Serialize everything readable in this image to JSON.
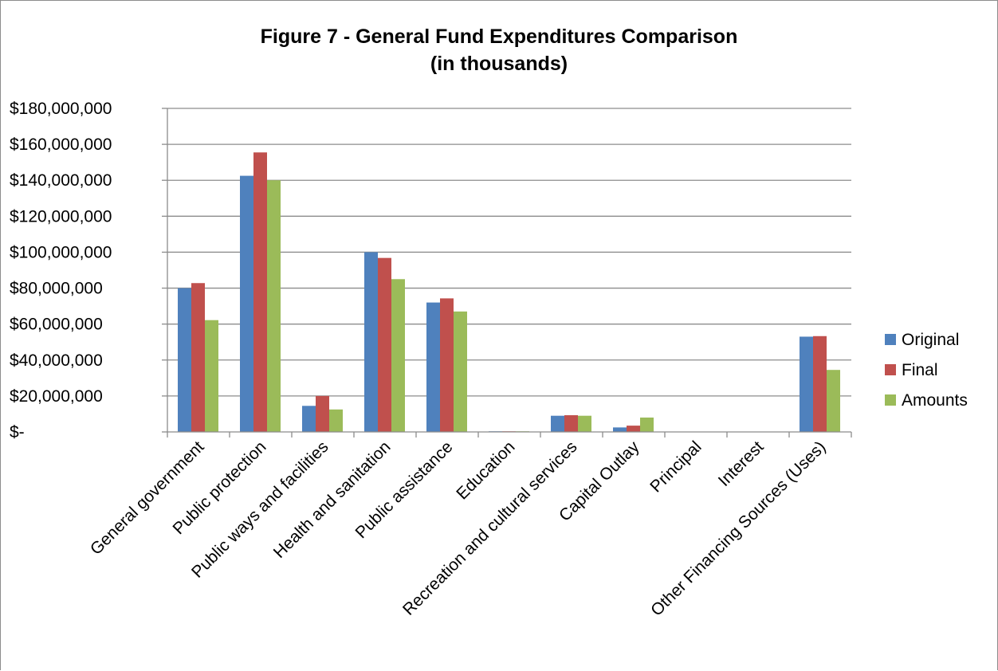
{
  "chart_data": {
    "type": "bar",
    "title": "Figure 7 - General Fund Expenditures Comparison",
    "subtitle": "(in thousands)",
    "xlabel": "",
    "ylabel": "",
    "ylim": [
      0,
      180000000
    ],
    "y_ticks": [
      {
        "value": 0,
        "label": "$-"
      },
      {
        "value": 20000000,
        "label": "$20,000,000"
      },
      {
        "value": 40000000,
        "label": "$40,000,000"
      },
      {
        "value": 60000000,
        "label": "$60,000,000"
      },
      {
        "value": 80000000,
        "label": "$80,000,000"
      },
      {
        "value": 100000000,
        "label": "$100,000,000"
      },
      {
        "value": 120000000,
        "label": "$120,000,000"
      },
      {
        "value": 140000000,
        "label": "$140,000,000"
      },
      {
        "value": 160000000,
        "label": "$160,000,000"
      },
      {
        "value": 180000000,
        "label": "$180,000,000"
      }
    ],
    "grid": true,
    "legend_position": "right",
    "categories": [
      "General government",
      "Public protection",
      "Public ways and facilities",
      "Health and sanitation",
      "Public assistance",
      "Education",
      "Recreation and cultural services",
      "Capital Outlay",
      "Principal",
      "Interest",
      "Other Financing Sources (Uses)"
    ],
    "series": [
      {
        "name": "Original",
        "color": "#4f81bd",
        "values": [
          80000000,
          142500000,
          14500000,
          100000000,
          72000000,
          300000,
          9000000,
          2500000,
          0,
          0,
          53000000
        ]
      },
      {
        "name": "Final",
        "color": "#c0504d",
        "values": [
          82800000,
          155500000,
          20000000,
          96800000,
          74300000,
          350000,
          9300000,
          3500000,
          0,
          0,
          53300000
        ]
      },
      {
        "name": "Amounts",
        "color": "#9bbb59",
        "values": [
          62200000,
          140000000,
          12500000,
          85000000,
          67000000,
          250000,
          9000000,
          8000000,
          0,
          0,
          34500000
        ]
      }
    ]
  }
}
